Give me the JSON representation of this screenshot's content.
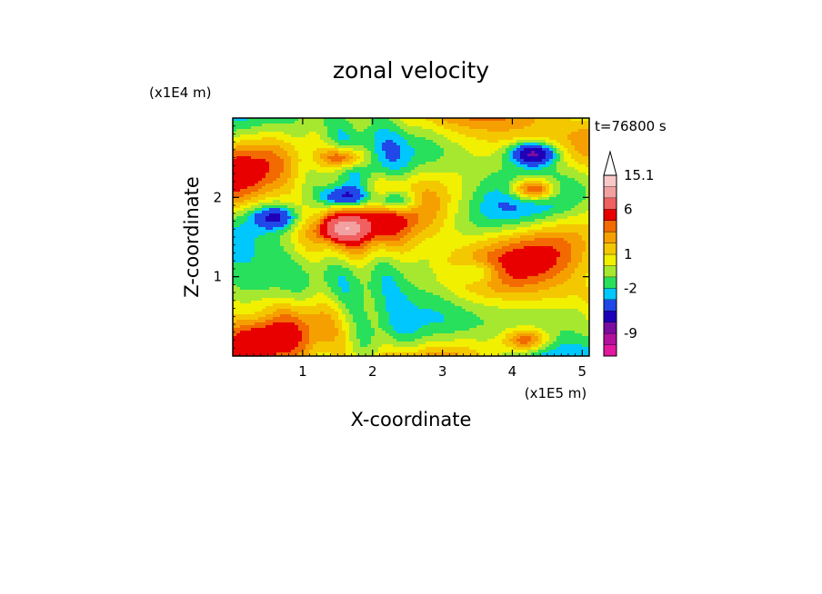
{
  "chart_data": {
    "type": "heatmap",
    "title": "zonal velocity",
    "xlabel": "X-coordinate",
    "ylabel": "Z-coordinate",
    "x_unit": "(x1E5 m)",
    "y_unit": "(x1E4 m)",
    "time_label": "t=76800 s",
    "xlim": [
      0,
      5.1
    ],
    "ylim": [
      0,
      3.0
    ],
    "x_ticks": [
      1,
      2,
      3,
      4,
      5
    ],
    "y_ticks": [
      1,
      2
    ],
    "colorbar": {
      "levels": [
        -13,
        -11,
        -9,
        -7,
        -5,
        -3,
        -2,
        -1,
        0,
        1,
        2,
        3,
        4,
        6,
        9,
        12,
        15.1
      ],
      "colors": [
        "#e2189e",
        "#b4109e",
        "#7a0ca0",
        "#1f00b8",
        "#2048e8",
        "#00c8ff",
        "#28e05c",
        "#a6e830",
        "#f0f000",
        "#f4c800",
        "#f5a000",
        "#f26a00",
        "#e80000",
        "#f06060",
        "#f3a0a0",
        "#f8c8c8"
      ],
      "extend": "max",
      "tick_labels": [
        {
          "value": 15.1,
          "text": "15.1"
        },
        {
          "value": 6,
          "text": "6"
        },
        {
          "value": 1,
          "text": "1"
        },
        {
          "value": -2,
          "text": "-2"
        },
        {
          "value": -9,
          "text": "-9"
        }
      ]
    },
    "field_features": [
      {
        "x": 4.3,
        "z": 2.55,
        "value": -8,
        "note": "strong negative core upper right"
      },
      {
        "x": 1.6,
        "z": 2.0,
        "value": -7,
        "note": "negative band upper middle"
      },
      {
        "x": 2.3,
        "z": 1.95,
        "value": -6
      },
      {
        "x": 0.6,
        "z": 1.75,
        "value": -5
      },
      {
        "x": 1.6,
        "z": 1.6,
        "value": 7,
        "note": "positive core"
      },
      {
        "x": 1.6,
        "z": 2.5,
        "value": 6
      },
      {
        "x": 4.3,
        "z": 2.1,
        "value": 7
      },
      {
        "x": 3.5,
        "z": 1.05,
        "value": -3
      },
      {
        "x": 4.9,
        "z": 0.5,
        "value": -1
      },
      {
        "x": 4.2,
        "z": 0.2,
        "value": 5
      },
      {
        "x": 0.3,
        "z": 0.5,
        "value": -1
      }
    ]
  }
}
